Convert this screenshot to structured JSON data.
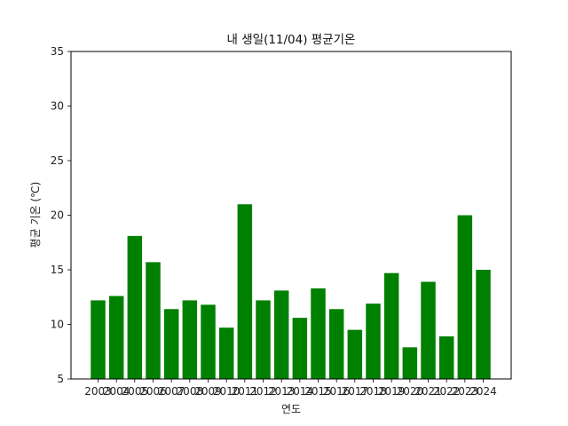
{
  "chart_data": {
    "type": "bar",
    "title": "내 생일(11/04) 평균기온",
    "xlabel": "연도",
    "ylabel": "평균 기온 (℃)",
    "categories": [
      "2003",
      "2004",
      "2005",
      "2006",
      "2007",
      "2008",
      "2009",
      "2010",
      "2011",
      "2012",
      "2013",
      "2014",
      "2015",
      "2016",
      "2017",
      "2018",
      "2019",
      "2020",
      "2021",
      "2022",
      "2023",
      "2024"
    ],
    "values": [
      12.2,
      12.6,
      18.1,
      15.7,
      11.4,
      12.2,
      11.8,
      9.7,
      21.0,
      12.2,
      13.1,
      10.6,
      13.3,
      11.4,
      9.5,
      11.9,
      14.7,
      7.9,
      13.9,
      8.9,
      20.0,
      15.0
    ],
    "ylim": [
      5,
      35
    ],
    "yticks": [
      5,
      10,
      15,
      20,
      25,
      30,
      35
    ],
    "bar_color": "#008000",
    "grid": false,
    "legend": "none"
  }
}
